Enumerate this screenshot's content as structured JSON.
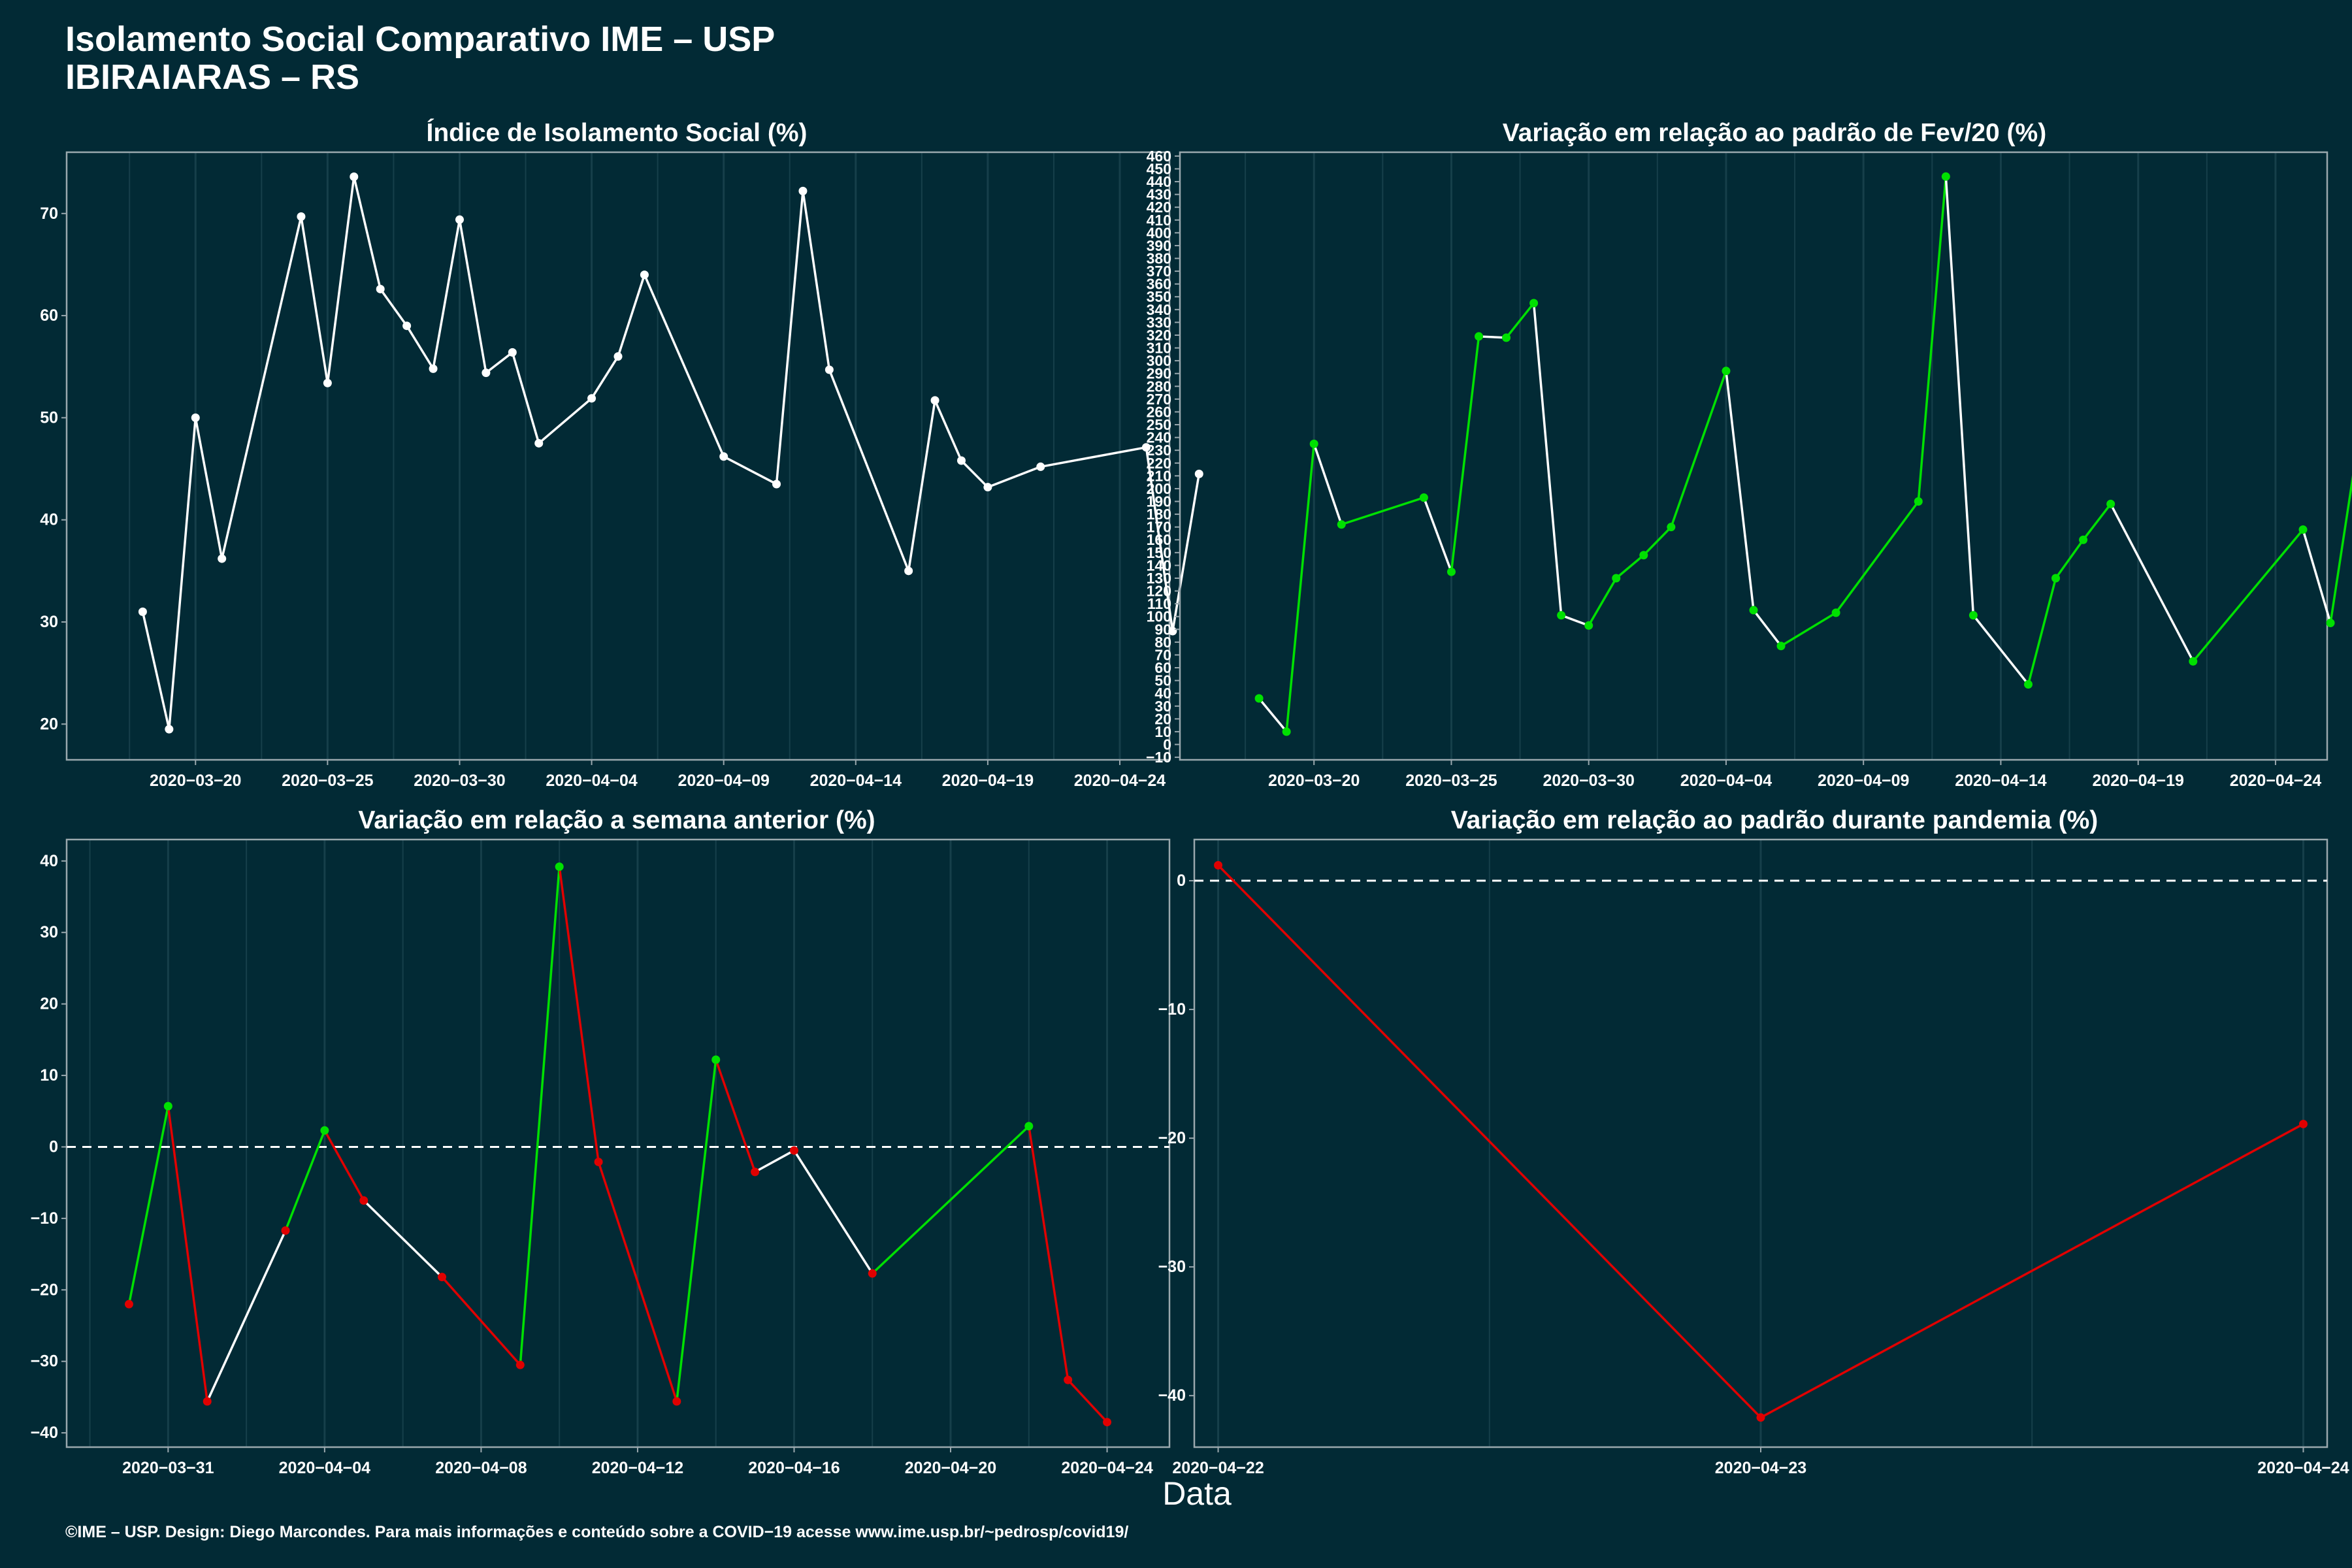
{
  "title": "Isolamento Social Comparativo IME – USP",
  "subtitle": "IBIRAIARAS – RS",
  "xlabel": "Data",
  "caption": "©IME – USP. Design: Diego Marcondes. Para mais informações e conteúdo sobre a COVID−19 acesse www.ime.usp.br/~pedrosp/covid19/",
  "colors": {
    "background": "#022a35",
    "axis": "#9aa8ae",
    "grid": "#163f4a",
    "neutral": "#ffffff",
    "increase": "#00e000",
    "decrease": "#e00000"
  },
  "chart_data": [
    {
      "type": "line",
      "title": "Índice de Isolamento Social (%)",
      "xlim": [
        "2020-03-16",
        "2020-04-25"
      ],
      "ylim": [
        16.5,
        76
      ],
      "x_ticks": [
        "2020-03-20",
        "2020-03-25",
        "2020-03-30",
        "2020-04-04",
        "2020-04-09",
        "2020-04-14",
        "2020-04-19",
        "2020-04-24"
      ],
      "y_ticks": [
        20,
        30,
        40,
        50,
        60,
        70
      ],
      "segment_color_rule": "neutral",
      "points": [
        {
          "x": "2020-03-18",
          "y": 31.0
        },
        {
          "x": "2020-03-19",
          "y": 19.5
        },
        {
          "x": "2020-03-20",
          "y": 50.0
        },
        {
          "x": "2020-03-21",
          "y": 36.2
        },
        {
          "x": "2020-03-24",
          "y": 69.7
        },
        {
          "x": "2020-03-25",
          "y": 53.4
        },
        {
          "x": "2020-03-26",
          "y": 73.6
        },
        {
          "x": "2020-03-27",
          "y": 62.6
        },
        {
          "x": "2020-03-28",
          "y": 59.0
        },
        {
          "x": "2020-03-29",
          "y": 54.8
        },
        {
          "x": "2020-03-30",
          "y": 69.4
        },
        {
          "x": "2020-03-31",
          "y": 54.4
        },
        {
          "x": "2020-04-01",
          "y": 56.4
        },
        {
          "x": "2020-04-02",
          "y": 47.5
        },
        {
          "x": "2020-04-04",
          "y": 51.9
        },
        {
          "x": "2020-04-05",
          "y": 56.0
        },
        {
          "x": "2020-04-06",
          "y": 64.0
        },
        {
          "x": "2020-04-09",
          "y": 46.2
        },
        {
          "x": "2020-04-11",
          "y": 43.5
        },
        {
          "x": "2020-04-12",
          "y": 72.2
        },
        {
          "x": "2020-04-13",
          "y": 54.7
        },
        {
          "x": "2020-04-16",
          "y": 35.0
        },
        {
          "x": "2020-04-17",
          "y": 51.7
        },
        {
          "x": "2020-04-18",
          "y": 45.8
        },
        {
          "x": "2020-04-19",
          "y": 43.2
        },
        {
          "x": "2020-04-21",
          "y": 45.2
        },
        {
          "x": "2020-04-25",
          "y": 47.1
        },
        {
          "x": "2020-04-26",
          "y": 29.1
        },
        {
          "x": "2020-04-27",
          "y": 44.5
        }
      ]
    },
    {
      "type": "line",
      "title": "Variação em relação ao padrão de Fev/20 (%)",
      "xlim": [
        "2020-03-16",
        "2020-04-25"
      ],
      "ylim": [
        -12,
        463
      ],
      "x_ticks": [
        "2020-03-20",
        "2020-03-25",
        "2020-03-30",
        "2020-04-04",
        "2020-04-09",
        "2020-04-14",
        "2020-04-19",
        "2020-04-24"
      ],
      "y_ticks": [
        -10,
        0,
        10,
        20,
        30,
        40,
        50,
        60,
        70,
        80,
        90,
        100,
        110,
        120,
        130,
        140,
        150,
        160,
        170,
        180,
        190,
        200,
        210,
        220,
        230,
        240,
        250,
        260,
        270,
        280,
        290,
        300,
        310,
        320,
        330,
        340,
        350,
        360,
        370,
        380,
        390,
        400,
        410,
        420,
        430,
        440,
        450,
        460
      ],
      "segment_color_rule": "green-if-increase",
      "points": [
        {
          "x": "2020-03-18",
          "y": 36
        },
        {
          "x": "2020-03-19",
          "y": 10
        },
        {
          "x": "2020-03-20",
          "y": 235
        },
        {
          "x": "2020-03-21",
          "y": 172
        },
        {
          "x": "2020-03-24",
          "y": 193
        },
        {
          "x": "2020-03-25",
          "y": 135
        },
        {
          "x": "2020-03-26",
          "y": 319
        },
        {
          "x": "2020-03-27",
          "y": 318
        },
        {
          "x": "2020-03-28",
          "y": 345
        },
        {
          "x": "2020-03-29",
          "y": 101
        },
        {
          "x": "2020-03-30",
          "y": 93
        },
        {
          "x": "2020-03-31",
          "y": 130
        },
        {
          "x": "2020-04-01",
          "y": 148
        },
        {
          "x": "2020-04-02",
          "y": 170
        },
        {
          "x": "2020-04-04",
          "y": 292
        },
        {
          "x": "2020-04-05",
          "y": 105
        },
        {
          "x": "2020-04-06",
          "y": 77
        },
        {
          "x": "2020-04-08",
          "y": 103
        },
        {
          "x": "2020-04-11",
          "y": 190
        },
        {
          "x": "2020-04-12",
          "y": 444
        },
        {
          "x": "2020-04-13",
          "y": 101
        },
        {
          "x": "2020-04-15",
          "y": 47
        },
        {
          "x": "2020-04-16",
          "y": 130
        },
        {
          "x": "2020-04-17",
          "y": 160
        },
        {
          "x": "2020-04-18",
          "y": 188
        },
        {
          "x": "2020-04-21",
          "y": 65
        },
        {
          "x": "2020-04-25",
          "y": 168
        },
        {
          "x": "2020-04-26",
          "y": 95
        },
        {
          "x": "2020-04-27",
          "y": 235
        }
      ]
    },
    {
      "type": "line",
      "title": "Variação em relação a semana anterior (%)",
      "xlim": [
        "2020-03-29",
        "2020-04-25"
      ],
      "ylim": [
        -42,
        43
      ],
      "x_ticks": [
        "2020-03-31",
        "2020-04-04",
        "2020-04-08",
        "2020-04-12",
        "2020-04-16",
        "2020-04-20",
        "2020-04-24"
      ],
      "y_ticks": [
        -40,
        -30,
        -20,
        -10,
        0,
        10,
        20,
        30,
        40
      ],
      "reference_line": 0,
      "segment_color_rule": "green-if-rise-to-positive, red-if-fall-to-negative, otherwise-white",
      "points": [
        {
          "x": "2020-03-30",
          "y": -22.0
        },
        {
          "x": "2020-03-31",
          "y": 5.7
        },
        {
          "x": "2020-04-01",
          "y": -35.6
        },
        {
          "x": "2020-04-03",
          "y": -11.7
        },
        {
          "x": "2020-04-04",
          "y": 2.3
        },
        {
          "x": "2020-04-05",
          "y": -7.5
        },
        {
          "x": "2020-04-07",
          "y": -18.2
        },
        {
          "x": "2020-04-09",
          "y": -30.5
        },
        {
          "x": "2020-04-10",
          "y": 39.2
        },
        {
          "x": "2020-04-11",
          "y": -2.1
        },
        {
          "x": "2020-04-13",
          "y": -35.6
        },
        {
          "x": "2020-04-14",
          "y": 12.2
        },
        {
          "x": "2020-04-15",
          "y": -3.5
        },
        {
          "x": "2020-04-16",
          "y": -0.5
        },
        {
          "x": "2020-04-18",
          "y": -17.7
        },
        {
          "x": "2020-04-22",
          "y": 2.9
        },
        {
          "x": "2020-04-23",
          "y": -32.6
        },
        {
          "x": "2020-04-24",
          "y": -38.5
        }
      ]
    },
    {
      "type": "line",
      "title": "Variação em relação ao padrão durante pandemia (%)",
      "xlim": [
        "2020-04-22",
        "2020-04-24"
      ],
      "ylim": [
        -44,
        3.2
      ],
      "x_ticks": [
        "2020-04-22",
        "2020-04-23",
        "2020-04-24"
      ],
      "y_ticks": [
        -40,
        -30,
        -20,
        -10,
        0
      ],
      "reference_line": 0,
      "segment_color_rule": "red",
      "points": [
        {
          "x": "2020-04-22",
          "y": 1.2
        },
        {
          "x": "2020-04-23",
          "y": -41.7
        },
        {
          "x": "2020-04-24",
          "y": -18.9
        }
      ]
    }
  ]
}
